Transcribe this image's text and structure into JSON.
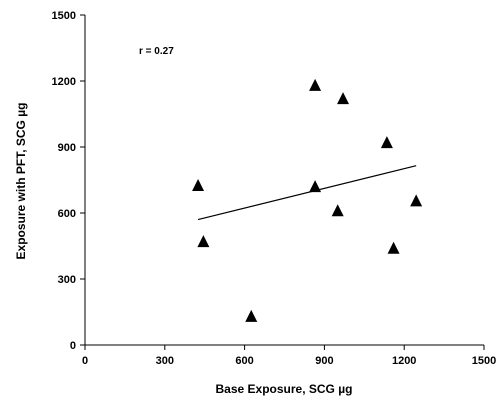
{
  "chart_data": {
    "type": "scatter",
    "xlabel": "Base Exposure, SCG µg",
    "ylabel": "Exposure with PFT, SCG µg",
    "xlim": [
      0,
      1500
    ],
    "ylim": [
      0,
      1500
    ],
    "xticks": [
      0,
      300,
      600,
      900,
      1200,
      1500
    ],
    "yticks": [
      0,
      300,
      600,
      900,
      1200,
      1500
    ],
    "grid": false,
    "annotation": "r = 0.27",
    "marker": "triangle",
    "marker_color": "#000000",
    "points": [
      {
        "x": 425,
        "y": 725
      },
      {
        "x": 445,
        "y": 470
      },
      {
        "x": 625,
        "y": 130
      },
      {
        "x": 865,
        "y": 1180
      },
      {
        "x": 865,
        "y": 720
      },
      {
        "x": 950,
        "y": 610
      },
      {
        "x": 970,
        "y": 1120
      },
      {
        "x": 1135,
        "y": 920
      },
      {
        "x": 1160,
        "y": 440
      },
      {
        "x": 1245,
        "y": 655
      }
    ],
    "trendline": {
      "x": [
        425,
        1245
      ],
      "y": [
        570,
        815
      ]
    }
  }
}
